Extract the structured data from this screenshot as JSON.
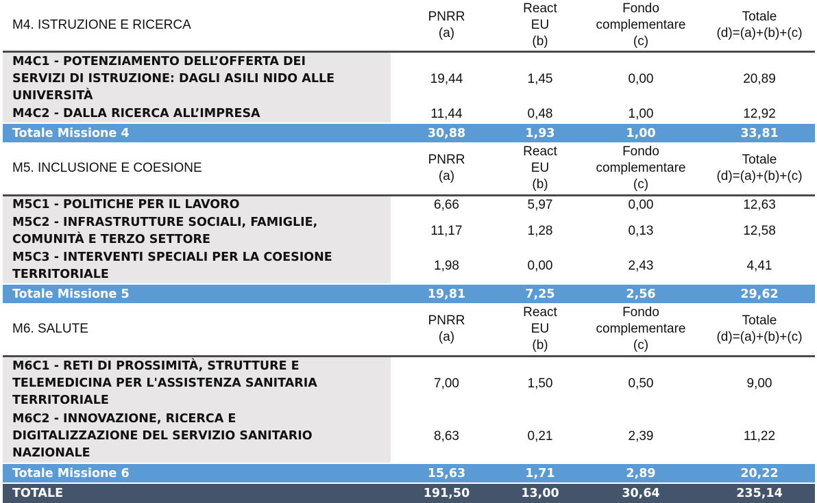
{
  "sections": [
    {
      "title": "M4. ISTRUZIONE E RICERCA",
      "headers": {
        "a": [
          "PNRR",
          "(a)"
        ],
        "b": [
          "React",
          "EU",
          "(b)"
        ],
        "c": [
          "Fondo",
          "complementare",
          "(c)"
        ],
        "d": [
          "Totale",
          "(d)=(a)+(b)+(c)"
        ]
      },
      "rows": [
        {
          "label": [
            "M4C1 - POTENZIAMENTO DELL’OFFERTA DEI",
            "SERVIZI DI ISTRUZIONE: DAGLI ASILI NIDO ALLE",
            "UNIVERSITÀ"
          ],
          "a": "19,44",
          "b": "1,45",
          "c": "0,00",
          "d": "20,89"
        },
        {
          "label": [
            "M4C2 - DALLA RICERCA ALL’IMPRESA"
          ],
          "a": "11,44",
          "b": "0,48",
          "c": "1,00",
          "d": "12,92"
        }
      ],
      "total": {
        "label": "Totale Missione 4",
        "a": "30,88",
        "b": "1,93",
        "c": "1,00",
        "d": "33,81"
      }
    },
    {
      "title": "M5. INCLUSIONE E COESIONE",
      "headers": {
        "a": [
          "PNRR",
          "(a)"
        ],
        "b": [
          "React",
          "EU",
          "(b)"
        ],
        "c": [
          "Fondo",
          "complementare",
          "(c)"
        ],
        "d": [
          "Totale",
          "(d)=(a)+(b)+(c)"
        ]
      },
      "rows": [
        {
          "label": [
            "M5C1 - POLITICHE PER IL LAVORO"
          ],
          "a": "6,66",
          "b": "5,97",
          "c": "0,00",
          "d": "12,63"
        },
        {
          "label": [
            "M5C2 - INFRASTRUTTURE SOCIALI, FAMIGLIE,",
            "COMUNITÀ E TERZO SETTORE"
          ],
          "a": "11,17",
          "b": "1,28",
          "c": "0,13",
          "d": "12,58"
        },
        {
          "label": [
            "M5C3 - INTERVENTI SPECIALI PER LA COESIONE",
            "TERRITORIALE"
          ],
          "a": "1,98",
          "b": "0,00",
          "c": "2,43",
          "d": "4,41"
        }
      ],
      "total": {
        "label": "Totale Missione 5",
        "a": "19,81",
        "b": "7,25",
        "c": "2,56",
        "d": "29,62"
      }
    },
    {
      "title": "M6. SALUTE",
      "headers": {
        "a": [
          "PNRR",
          "(a)"
        ],
        "b": [
          "React",
          "EU",
          "(b)"
        ],
        "c": [
          "Fondo",
          "complementare",
          "(c)"
        ],
        "d": [
          "Totale",
          "(d)=(a)+(b)+(c)"
        ]
      },
      "rows": [
        {
          "label": [
            "M6C1 - RETI DI PROSSIMITÀ, STRUTTURE E",
            "TELEMEDICINA PER L'ASSISTENZA SANITARIA",
            "TERRITORIALE"
          ],
          "a": "7,00",
          "b": "1,50",
          "c": "0,50",
          "d": "9,00"
        },
        {
          "label": [
            "M6C2 - INNOVAZIONE, RICERCA E",
            "DIGITALIZZAZIONE DEL SERVIZIO SANITARIO",
            "NAZIONALE"
          ],
          "a": "8,63",
          "b": "0,21",
          "c": "2,39",
          "d": "11,22"
        }
      ],
      "total": {
        "label": "Totale Missione 6",
        "a": "15,63",
        "b": "1,71",
        "c": "2,89",
        "d": "20,22"
      }
    }
  ],
  "grand_total": {
    "label": "TOTALE",
    "a": "191,50",
    "b": "13,00",
    "c": "30,64",
    "d": "235,14"
  },
  "colors": {
    "label_bg": "#e8e6e6",
    "total_bg": "#5b9bd5",
    "grand_total_bg": "#44546a"
  }
}
